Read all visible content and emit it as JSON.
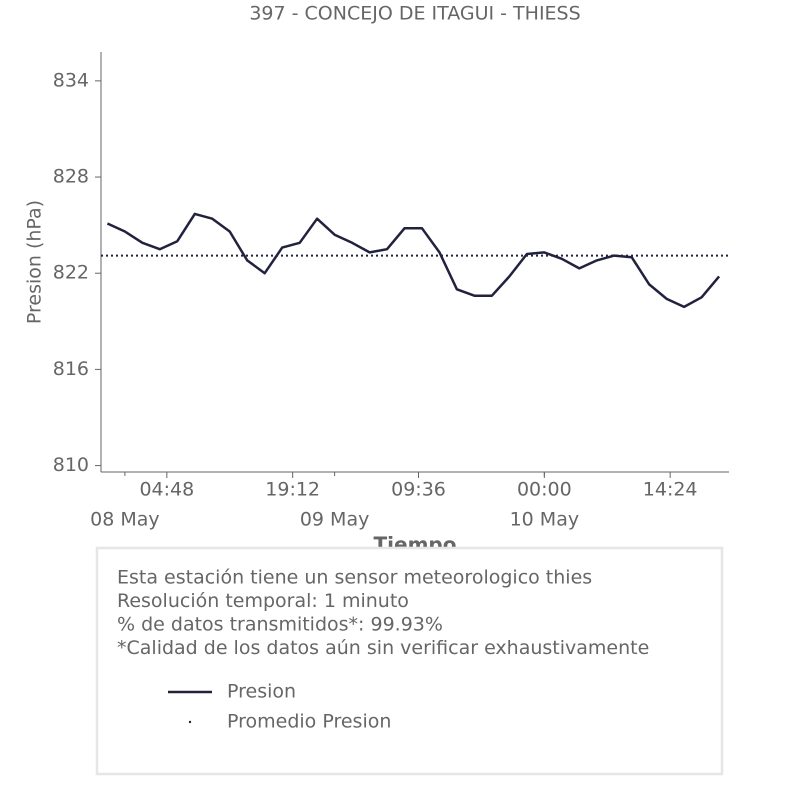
{
  "chart_data": {
    "type": "line",
    "title": "397 - CONCEJO DE ITAGUI - THIESS",
    "xlabel": "Tiempo",
    "ylabel": "Presion (hPa)",
    "x": [
      "07 May 22:00",
      "08 May 00:00",
      "08 May 02:00",
      "08 May 04:00",
      "08 May 06:00",
      "08 May 08:00",
      "08 May 10:00",
      "08 May 12:00",
      "08 May 14:00",
      "08 May 16:00",
      "08 May 18:00",
      "08 May 20:00",
      "08 May 22:00",
      "09 May 00:00",
      "09 May 02:00",
      "09 May 04:00",
      "09 May 06:00",
      "09 May 08:00",
      "09 May 10:00",
      "09 May 12:00",
      "09 May 14:00",
      "09 May 16:00",
      "09 May 18:00",
      "09 May 20:00",
      "09 May 22:00",
      "10 May 00:00",
      "10 May 02:00",
      "10 May 04:00",
      "10 May 06:00",
      "10 May 08:00",
      "10 May 10:00",
      "10 May 12:00",
      "10 May 14:00",
      "10 May 16:00",
      "10 May 18:00",
      "10 May 20:00"
    ],
    "series": [
      {
        "name": "Presion",
        "color": "#22223f",
        "values": [
          825.1,
          824.6,
          823.9,
          823.5,
          824.0,
          825.7,
          825.4,
          824.6,
          822.8,
          822.0,
          823.6,
          823.9,
          825.4,
          824.4,
          823.9,
          823.3,
          823.5,
          824.8,
          824.8,
          823.3,
          821.0,
          820.6,
          820.6,
          821.8,
          823.2,
          823.3,
          822.9,
          822.3,
          822.8,
          823.1,
          823.0,
          821.3,
          820.4,
          819.9,
          820.5,
          821.8
        ]
      }
    ],
    "reference_lines": [
      {
        "name": "Promedio Presion",
        "value": 823.1,
        "color": "#22223f",
        "style": "dotted"
      }
    ],
    "xlim": [
      "07 May 21:16",
      "10 May 21:08"
    ],
    "xticks": [
      {
        "value": "08 May 04:48",
        "label": "04:48"
      },
      {
        "value": "08 May 19:12",
        "label": "19:12"
      },
      {
        "value": "09 May 09:36",
        "label": "09:36"
      },
      {
        "value": "10 May 00:00",
        "label": "00:00"
      },
      {
        "value": "10 May 14:24",
        "label": "14:24"
      }
    ],
    "xdate_ticks": [
      {
        "value": "08 May 00:00",
        "label": "08 May"
      },
      {
        "value": "09 May 00:00",
        "label": "09 May"
      },
      {
        "value": "10 May 00:00",
        "label": "10 May"
      }
    ],
    "ylim": [
      809.6,
      835.8
    ],
    "yticks": [
      810,
      816,
      822,
      828,
      834
    ],
    "grid": false,
    "notes": [
      "Esta estación tiene un sensor meteorologico thies",
      "Resolución temporal: 1 minuto",
      "% de datos transmitidos*: 99.93%",
      "*Calidad de los datos aún sin verificar exhaustivamente"
    ]
  }
}
